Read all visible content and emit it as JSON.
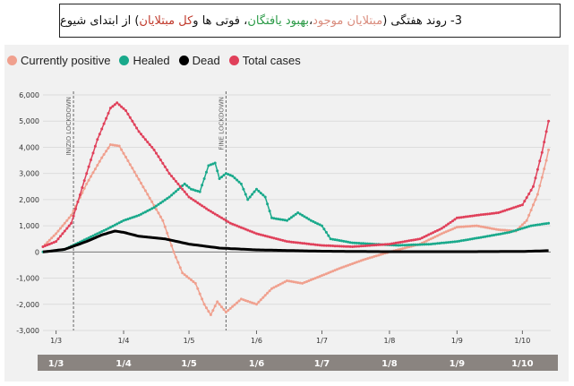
{
  "caption": {
    "number": "3-",
    "part1": "روند هفتگی (",
    "positive": "مبتلایان موجود",
    "sep1": "، ",
    "healed": "بهبود یافتگان",
    "part2": "، فوتی ها و ",
    "total": "کل مبتلایان",
    "part3": ") از ابتدای شیوع"
  },
  "colors": {
    "positive": "#f0a08e",
    "healed": "#19a98b",
    "dead": "#000000",
    "total": "#e0405a",
    "panel": "#f1f1f1",
    "band": "#8a8480"
  },
  "chart_data": {
    "type": "line",
    "legend_position": "top-left",
    "grid": "horizontal",
    "ylim": [
      -3000,
      6000
    ],
    "yticks": [
      "6,000",
      "5,000",
      "4,000",
      "3,000",
      "2,000",
      "1,000",
      "0",
      "-1,000",
      "-2,000",
      "-3,000"
    ],
    "ytick_values": [
      6000,
      5000,
      4000,
      3000,
      2000,
      1000,
      0,
      -1000,
      -2000,
      -3000
    ],
    "xlim": [
      "2020-02-24",
      "2020-10-14"
    ],
    "xticks": [
      "1/3",
      "1/4",
      "1/5",
      "1/6",
      "1/7",
      "1/8",
      "1/9",
      "1/10"
    ],
    "xtick_dates": [
      "2020-03-01",
      "2020-04-01",
      "2020-05-01",
      "2020-06-01",
      "2020-07-01",
      "2020-08-01",
      "2020-09-01",
      "2020-10-01"
    ],
    "annotations": [
      {
        "label": "INIZIO LOCKDOWN",
        "date": "2020-03-09"
      },
      {
        "label": "FINE LOCKDOWN",
        "date": "2020-05-18"
      }
    ],
    "series": [
      {
        "name": "Currently positive",
        "color": "#f0a08e",
        "points": [
          [
            "2020-02-24",
            200
          ],
          [
            "2020-03-01",
            700
          ],
          [
            "2020-03-08",
            1400
          ],
          [
            "2020-03-15",
            2600
          ],
          [
            "2020-03-22",
            3600
          ],
          [
            "2020-03-26",
            4100
          ],
          [
            "2020-03-30",
            4050
          ],
          [
            "2020-04-05",
            3200
          ],
          [
            "2020-04-12",
            2200
          ],
          [
            "2020-04-19",
            1200
          ],
          [
            "2020-04-24",
            0
          ],
          [
            "2020-04-28",
            -800
          ],
          [
            "2020-05-04",
            -1200
          ],
          [
            "2020-05-08",
            -2000
          ],
          [
            "2020-05-11",
            -2400
          ],
          [
            "2020-05-14",
            -1900
          ],
          [
            "2020-05-18",
            -2300
          ],
          [
            "2020-05-25",
            -1800
          ],
          [
            "2020-06-01",
            -2000
          ],
          [
            "2020-06-08",
            -1400
          ],
          [
            "2020-06-15",
            -1100
          ],
          [
            "2020-06-22",
            -1200
          ],
          [
            "2020-07-01",
            -900
          ],
          [
            "2020-07-10",
            -600
          ],
          [
            "2020-07-20",
            -300
          ],
          [
            "2020-08-01",
            0
          ],
          [
            "2020-08-15",
            300
          ],
          [
            "2020-08-25",
            700
          ],
          [
            "2020-09-01",
            950
          ],
          [
            "2020-09-10",
            1000
          ],
          [
            "2020-09-20",
            850
          ],
          [
            "2020-09-28",
            800
          ],
          [
            "2020-10-03",
            1200
          ],
          [
            "2020-10-08",
            2200
          ],
          [
            "2020-10-12",
            3500
          ],
          [
            "2020-10-13",
            3900
          ]
        ]
      },
      {
        "name": "Healed",
        "color": "#19a98b",
        "points": [
          [
            "2020-02-24",
            0
          ],
          [
            "2020-03-05",
            100
          ],
          [
            "2020-03-15",
            500
          ],
          [
            "2020-03-25",
            900
          ],
          [
            "2020-04-01",
            1200
          ],
          [
            "2020-04-08",
            1400
          ],
          [
            "2020-04-15",
            1700
          ],
          [
            "2020-04-22",
            2100
          ],
          [
            "2020-04-29",
            2600
          ],
          [
            "2020-05-02",
            2400
          ],
          [
            "2020-05-06",
            2300
          ],
          [
            "2020-05-10",
            3300
          ],
          [
            "2020-05-13",
            3400
          ],
          [
            "2020-05-15",
            2800
          ],
          [
            "2020-05-18",
            3000
          ],
          [
            "2020-05-21",
            2900
          ],
          [
            "2020-05-25",
            2600
          ],
          [
            "2020-05-28",
            2000
          ],
          [
            "2020-06-01",
            2400
          ],
          [
            "2020-06-05",
            2100
          ],
          [
            "2020-06-08",
            1300
          ],
          [
            "2020-06-15",
            1200
          ],
          [
            "2020-06-20",
            1500
          ],
          [
            "2020-06-26",
            1200
          ],
          [
            "2020-07-01",
            1000
          ],
          [
            "2020-07-05",
            500
          ],
          [
            "2020-07-15",
            350
          ],
          [
            "2020-07-25",
            300
          ],
          [
            "2020-08-05",
            250
          ],
          [
            "2020-08-20",
            300
          ],
          [
            "2020-09-01",
            400
          ],
          [
            "2020-09-15",
            600
          ],
          [
            "2020-09-25",
            750
          ],
          [
            "2020-10-05",
            1000
          ],
          [
            "2020-10-13",
            1100
          ]
        ]
      },
      {
        "name": "Dead",
        "color": "#000000",
        "points": [
          [
            "2020-02-24",
            0
          ],
          [
            "2020-03-05",
            100
          ],
          [
            "2020-03-15",
            400
          ],
          [
            "2020-03-22",
            650
          ],
          [
            "2020-03-28",
            800
          ],
          [
            "2020-04-01",
            750
          ],
          [
            "2020-04-08",
            600
          ],
          [
            "2020-04-20",
            500
          ],
          [
            "2020-05-01",
            300
          ],
          [
            "2020-05-15",
            150
          ],
          [
            "2020-06-01",
            80
          ],
          [
            "2020-07-01",
            30
          ],
          [
            "2020-08-01",
            10
          ],
          [
            "2020-09-01",
            10
          ],
          [
            "2020-10-01",
            20
          ],
          [
            "2020-10-13",
            50
          ]
        ]
      },
      {
        "name": "Total cases",
        "color": "#e0405a",
        "points": [
          [
            "2020-02-24",
            200
          ],
          [
            "2020-03-01",
            400
          ],
          [
            "2020-03-08",
            1100
          ],
          [
            "2020-03-15",
            3000
          ],
          [
            "2020-03-20",
            4300
          ],
          [
            "2020-03-26",
            5500
          ],
          [
            "2020-03-29",
            5700
          ],
          [
            "2020-04-02",
            5400
          ],
          [
            "2020-04-08",
            4600
          ],
          [
            "2020-04-15",
            3900
          ],
          [
            "2020-04-22",
            3000
          ],
          [
            "2020-05-01",
            2100
          ],
          [
            "2020-05-10",
            1600
          ],
          [
            "2020-05-20",
            1100
          ],
          [
            "2020-06-01",
            700
          ],
          [
            "2020-06-15",
            400
          ],
          [
            "2020-07-01",
            250
          ],
          [
            "2020-07-15",
            200
          ],
          [
            "2020-08-01",
            300
          ],
          [
            "2020-08-15",
            500
          ],
          [
            "2020-08-25",
            900
          ],
          [
            "2020-09-01",
            1300
          ],
          [
            "2020-09-10",
            1400
          ],
          [
            "2020-09-20",
            1500
          ],
          [
            "2020-10-01",
            1800
          ],
          [
            "2020-10-06",
            2500
          ],
          [
            "2020-10-10",
            3800
          ],
          [
            "2020-10-13",
            5000
          ]
        ]
      }
    ]
  }
}
